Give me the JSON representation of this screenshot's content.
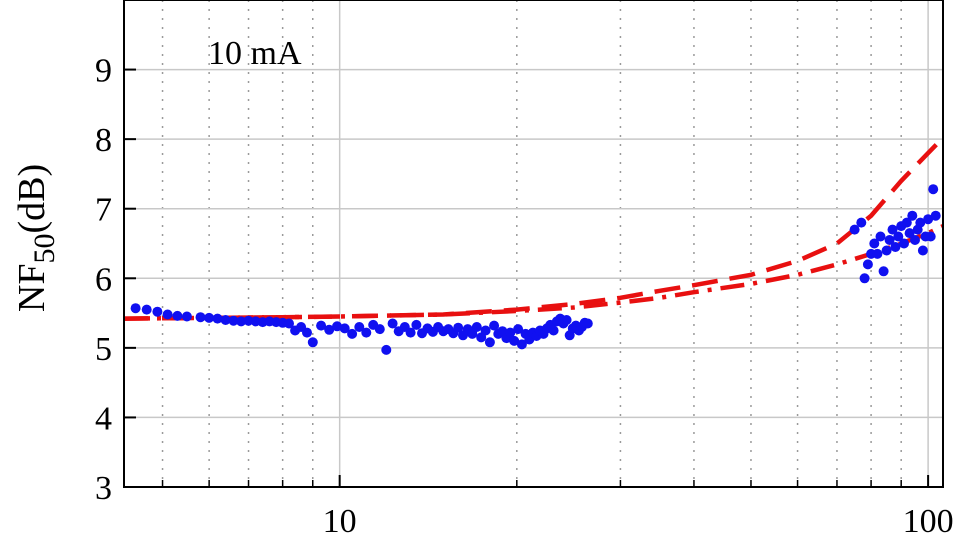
{
  "chart_data": {
    "type": "scatter",
    "title": "",
    "xlabel": "",
    "ylabel": "NF",
    "ylabel_sub": "50",
    "ylabel_unit": "(dB)",
    "annotation": "10 mA",
    "x_scale": "log",
    "xlim": [
      4.3,
      106
    ],
    "ylim": [
      3,
      10
    ],
    "x_ticks": [
      {
        "value": 10,
        "label": "10"
      },
      {
        "value": 100,
        "label": "100"
      }
    ],
    "y_ticks": [
      {
        "value": 3,
        "label": "3"
      },
      {
        "value": 4,
        "label": "4"
      },
      {
        "value": 5,
        "label": "5"
      },
      {
        "value": 6,
        "label": "6"
      },
      {
        "value": 7,
        "label": "7"
      },
      {
        "value": 8,
        "label": "8"
      },
      {
        "value": 9,
        "label": "9"
      }
    ],
    "grid": true,
    "colors": {
      "points": "#1010f0",
      "curves": "#e81010",
      "grid_major": "#c8c8c8",
      "grid_minor": "#9a9a9a"
    },
    "series": [
      {
        "kind": "points",
        "points": [
          [
            4.5,
            5.57
          ],
          [
            4.7,
            5.55
          ],
          [
            4.9,
            5.52
          ],
          [
            5.1,
            5.48
          ],
          [
            5.3,
            5.46
          ],
          [
            5.5,
            5.45
          ],
          [
            5.8,
            5.44
          ],
          [
            6.0,
            5.43
          ],
          [
            6.2,
            5.42
          ],
          [
            6.4,
            5.4
          ],
          [
            6.6,
            5.39
          ],
          [
            6.8,
            5.38
          ],
          [
            7.0,
            5.39
          ],
          [
            7.2,
            5.38
          ],
          [
            7.4,
            5.37
          ],
          [
            7.6,
            5.38
          ],
          [
            7.8,
            5.37
          ],
          [
            8.0,
            5.36
          ],
          [
            8.2,
            5.35
          ],
          [
            8.4,
            5.25
          ],
          [
            8.6,
            5.3
          ],
          [
            8.8,
            5.22
          ],
          [
            9.0,
            5.08
          ],
          [
            9.3,
            5.32
          ],
          [
            9.6,
            5.26
          ],
          [
            9.9,
            5.31
          ],
          [
            10.2,
            5.28
          ],
          [
            10.5,
            5.2
          ],
          [
            10.8,
            5.3
          ],
          [
            11.1,
            5.22
          ],
          [
            11.4,
            5.33
          ],
          [
            11.7,
            5.27
          ],
          [
            12.0,
            4.97
          ],
          [
            12.3,
            5.35
          ],
          [
            12.6,
            5.24
          ],
          [
            12.9,
            5.3
          ],
          [
            13.2,
            5.22
          ],
          [
            13.5,
            5.33
          ],
          [
            13.8,
            5.21
          ],
          [
            14.1,
            5.28
          ],
          [
            14.4,
            5.23
          ],
          [
            14.7,
            5.3
          ],
          [
            15.0,
            5.24
          ],
          [
            15.3,
            5.27
          ],
          [
            15.6,
            5.21
          ],
          [
            15.9,
            5.29
          ],
          [
            16.2,
            5.18
          ],
          [
            16.5,
            5.27
          ],
          [
            16.8,
            5.2
          ],
          [
            17.1,
            5.3
          ],
          [
            17.4,
            5.15
          ],
          [
            17.7,
            5.25
          ],
          [
            18.0,
            5.08
          ],
          [
            18.3,
            5.32
          ],
          [
            18.6,
            5.2
          ],
          [
            18.9,
            5.24
          ],
          [
            19.2,
            5.14
          ],
          [
            19.5,
            5.22
          ],
          [
            19.8,
            5.1
          ],
          [
            20.1,
            5.27
          ],
          [
            20.4,
            5.05
          ],
          [
            20.7,
            5.2
          ],
          [
            21.0,
            5.12
          ],
          [
            21.3,
            5.22
          ],
          [
            21.6,
            5.17
          ],
          [
            21.9,
            5.25
          ],
          [
            22.2,
            5.2
          ],
          [
            22.5,
            5.28
          ],
          [
            22.8,
            5.33
          ],
          [
            23.1,
            5.25
          ],
          [
            23.4,
            5.38
          ],
          [
            23.7,
            5.42
          ],
          [
            24.0,
            5.35
          ],
          [
            24.3,
            5.4
          ],
          [
            24.6,
            5.18
          ],
          [
            24.9,
            5.28
          ],
          [
            25.2,
            5.32
          ],
          [
            25.5,
            5.25
          ],
          [
            25.8,
            5.3
          ],
          [
            26.1,
            5.36
          ],
          [
            26.4,
            5.35
          ],
          [
            75,
            6.7
          ],
          [
            77,
            6.8
          ],
          [
            78,
            6.0
          ],
          [
            79,
            6.2
          ],
          [
            80,
            6.35
          ],
          [
            81,
            6.5
          ],
          [
            82,
            6.35
          ],
          [
            83,
            6.6
          ],
          [
            84,
            6.1
          ],
          [
            85,
            6.4
          ],
          [
            86,
            6.55
          ],
          [
            87,
            6.7
          ],
          [
            88,
            6.45
          ],
          [
            89,
            6.6
          ],
          [
            90,
            6.75
          ],
          [
            91,
            6.5
          ],
          [
            92,
            6.8
          ],
          [
            93,
            6.65
          ],
          [
            94,
            6.9
          ],
          [
            95,
            6.55
          ],
          [
            96,
            6.7
          ],
          [
            97,
            6.8
          ],
          [
            98,
            6.4
          ],
          [
            99,
            6.6
          ],
          [
            100,
            6.85
          ],
          [
            101,
            6.6
          ],
          [
            102,
            7.28
          ],
          [
            103,
            6.9
          ]
        ]
      },
      {
        "kind": "dashed-curve",
        "points": [
          [
            4.3,
            5.42
          ],
          [
            6,
            5.43
          ],
          [
            8,
            5.44
          ],
          [
            10,
            5.45
          ],
          [
            15,
            5.48
          ],
          [
            20,
            5.55
          ],
          [
            25,
            5.63
          ],
          [
            30,
            5.72
          ],
          [
            35,
            5.82
          ],
          [
            40,
            5.9
          ],
          [
            50,
            6.05
          ],
          [
            60,
            6.25
          ],
          [
            70,
            6.5
          ],
          [
            80,
            6.9
          ],
          [
            90,
            7.4
          ],
          [
            100,
            7.8
          ],
          [
            106,
            8.02
          ]
        ]
      },
      {
        "kind": "dashdot-curve",
        "points": [
          [
            4.3,
            5.42
          ],
          [
            6,
            5.43
          ],
          [
            8,
            5.44
          ],
          [
            10,
            5.45
          ],
          [
            15,
            5.48
          ],
          [
            20,
            5.53
          ],
          [
            25,
            5.58
          ],
          [
            30,
            5.65
          ],
          [
            35,
            5.72
          ],
          [
            40,
            5.8
          ],
          [
            50,
            5.92
          ],
          [
            60,
            6.05
          ],
          [
            70,
            6.2
          ],
          [
            80,
            6.35
          ],
          [
            90,
            6.5
          ],
          [
            100,
            6.65
          ],
          [
            106,
            6.75
          ]
        ]
      }
    ]
  }
}
